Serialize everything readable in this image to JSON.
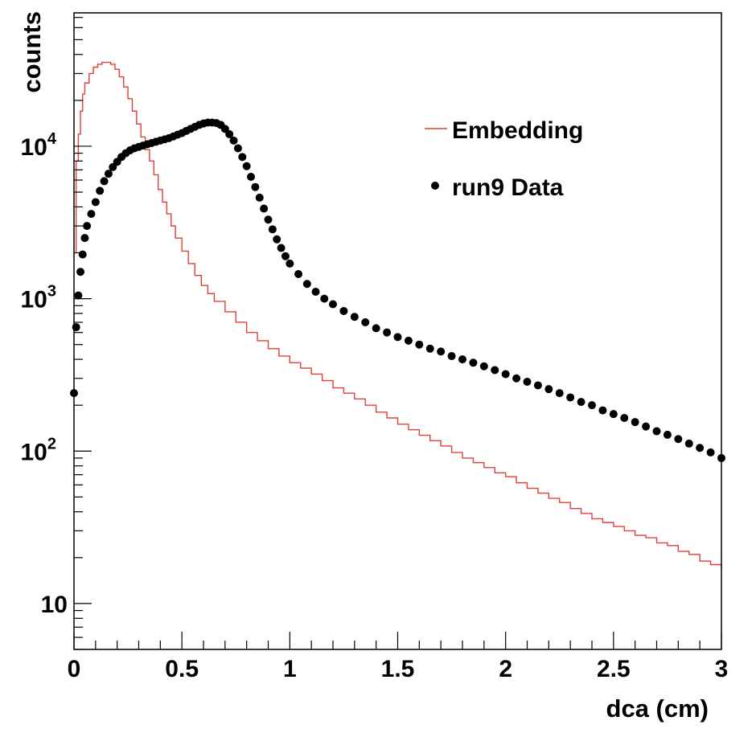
{
  "chart_data": {
    "type": "line",
    "title": "",
    "xlabel": "dca (cm)",
    "ylabel": "counts",
    "xlim": [
      0,
      3
    ],
    "ylim": [
      5,
      75000
    ],
    "y_scale": "log",
    "grid": false,
    "legend_position": "top-right",
    "x_ticks": [
      {
        "value": 0,
        "label": "0"
      },
      {
        "value": 0.5,
        "label": "0.5"
      },
      {
        "value": 1,
        "label": "1"
      },
      {
        "value": 1.5,
        "label": "1.5"
      },
      {
        "value": 2,
        "label": "2"
      },
      {
        "value": 2.5,
        "label": "2.5"
      },
      {
        "value": 3,
        "label": "3"
      }
    ],
    "y_ticks": [
      {
        "value": 10,
        "label": "10"
      },
      {
        "value": 100,
        "label": "10",
        "exponent": "2"
      },
      {
        "value": 1000,
        "label": "10",
        "exponent": "3"
      },
      {
        "value": 10000,
        "label": "10",
        "exponent": "4"
      }
    ],
    "series": [
      {
        "name": "Embedding",
        "style": "step",
        "color": "#e0403a",
        "points": [
          [
            0.0,
            2000
          ],
          [
            0.01,
            8000
          ],
          [
            0.02,
            12000
          ],
          [
            0.03,
            17000
          ],
          [
            0.04,
            22000
          ],
          [
            0.05,
            26000
          ],
          [
            0.07,
            30000
          ],
          [
            0.09,
            33000
          ],
          [
            0.11,
            34500
          ],
          [
            0.13,
            35500
          ],
          [
            0.15,
            35500
          ],
          [
            0.17,
            34500
          ],
          [
            0.19,
            32000
          ],
          [
            0.21,
            28500
          ],
          [
            0.23,
            24500
          ],
          [
            0.25,
            20500
          ],
          [
            0.27,
            17000
          ],
          [
            0.29,
            14000
          ],
          [
            0.31,
            11500
          ],
          [
            0.33,
            9500
          ],
          [
            0.35,
            8000
          ],
          [
            0.37,
            6500
          ],
          [
            0.39,
            5200
          ],
          [
            0.41,
            4300
          ],
          [
            0.43,
            3600
          ],
          [
            0.45,
            3000
          ],
          [
            0.47,
            2500
          ],
          [
            0.5,
            2050
          ],
          [
            0.53,
            1700
          ],
          [
            0.56,
            1420
          ],
          [
            0.59,
            1220
          ],
          [
            0.62,
            1080
          ],
          [
            0.65,
            960
          ],
          [
            0.7,
            820
          ],
          [
            0.75,
            700
          ],
          [
            0.8,
            600
          ],
          [
            0.85,
            530
          ],
          [
            0.9,
            470
          ],
          [
            0.95,
            420
          ],
          [
            1.0,
            380
          ],
          [
            1.05,
            350
          ],
          [
            1.1,
            320
          ],
          [
            1.15,
            290
          ],
          [
            1.2,
            260
          ],
          [
            1.25,
            240
          ],
          [
            1.3,
            220
          ],
          [
            1.35,
            200
          ],
          [
            1.4,
            180
          ],
          [
            1.45,
            165
          ],
          [
            1.5,
            150
          ],
          [
            1.55,
            138
          ],
          [
            1.6,
            127
          ],
          [
            1.65,
            117
          ],
          [
            1.7,
            108
          ],
          [
            1.75,
            98
          ],
          [
            1.8,
            90
          ],
          [
            1.85,
            84
          ],
          [
            1.9,
            78
          ],
          [
            1.95,
            72
          ],
          [
            2.0,
            68
          ],
          [
            2.05,
            62
          ],
          [
            2.1,
            57
          ],
          [
            2.15,
            53
          ],
          [
            2.2,
            49
          ],
          [
            2.25,
            46
          ],
          [
            2.3,
            42
          ],
          [
            2.35,
            39
          ],
          [
            2.4,
            36
          ],
          [
            2.45,
            34
          ],
          [
            2.5,
            32
          ],
          [
            2.55,
            30
          ],
          [
            2.6,
            28
          ],
          [
            2.65,
            27
          ],
          [
            2.7,
            25
          ],
          [
            2.75,
            24
          ],
          [
            2.8,
            22
          ],
          [
            2.85,
            21
          ],
          [
            2.9,
            19
          ],
          [
            2.95,
            18
          ],
          [
            3.0,
            17
          ]
        ]
      },
      {
        "name": "run9 Data",
        "style": "markers",
        "color": "#000000",
        "points": [
          [
            0.0,
            240
          ],
          [
            0.01,
            650
          ],
          [
            0.02,
            1050
          ],
          [
            0.03,
            1500
          ],
          [
            0.04,
            1950
          ],
          [
            0.05,
            2500
          ],
          [
            0.06,
            3000
          ],
          [
            0.08,
            3600
          ],
          [
            0.1,
            4300
          ],
          [
            0.12,
            5100
          ],
          [
            0.14,
            5900
          ],
          [
            0.16,
            6600
          ],
          [
            0.18,
            7300
          ],
          [
            0.2,
            7900
          ],
          [
            0.22,
            8500
          ],
          [
            0.24,
            9000
          ],
          [
            0.26,
            9400
          ],
          [
            0.28,
            9700
          ],
          [
            0.3,
            9900
          ],
          [
            0.32,
            10100
          ],
          [
            0.34,
            10300
          ],
          [
            0.36,
            10500
          ],
          [
            0.38,
            10700
          ],
          [
            0.4,
            10900
          ],
          [
            0.42,
            11100
          ],
          [
            0.44,
            11300
          ],
          [
            0.46,
            11600
          ],
          [
            0.48,
            11900
          ],
          [
            0.5,
            12200
          ],
          [
            0.52,
            12600
          ],
          [
            0.54,
            13000
          ],
          [
            0.56,
            13400
          ],
          [
            0.58,
            13800
          ],
          [
            0.6,
            14100
          ],
          [
            0.62,
            14300
          ],
          [
            0.64,
            14300
          ],
          [
            0.66,
            14200
          ],
          [
            0.68,
            13800
          ],
          [
            0.7,
            13000
          ],
          [
            0.72,
            12000
          ],
          [
            0.74,
            10900
          ],
          [
            0.76,
            9700
          ],
          [
            0.78,
            8500
          ],
          [
            0.8,
            7400
          ],
          [
            0.82,
            6300
          ],
          [
            0.84,
            5400
          ],
          [
            0.86,
            4600
          ],
          [
            0.88,
            3900
          ],
          [
            0.9,
            3300
          ],
          [
            0.92,
            2850
          ],
          [
            0.94,
            2450
          ],
          [
            0.96,
            2150
          ],
          [
            0.98,
            1900
          ],
          [
            1.0,
            1700
          ],
          [
            1.04,
            1450
          ],
          [
            1.08,
            1250
          ],
          [
            1.12,
            1110
          ],
          [
            1.16,
            1000
          ],
          [
            1.2,
            920
          ],
          [
            1.25,
            830
          ],
          [
            1.3,
            760
          ],
          [
            1.35,
            700
          ],
          [
            1.4,
            640
          ],
          [
            1.45,
            600
          ],
          [
            1.5,
            560
          ],
          [
            1.55,
            530
          ],
          [
            1.6,
            500
          ],
          [
            1.65,
            470
          ],
          [
            1.7,
            450
          ],
          [
            1.75,
            420
          ],
          [
            1.8,
            400
          ],
          [
            1.85,
            380
          ],
          [
            1.9,
            360
          ],
          [
            1.95,
            340
          ],
          [
            2.0,
            320
          ],
          [
            2.05,
            300
          ],
          [
            2.1,
            285
          ],
          [
            2.15,
            270
          ],
          [
            2.2,
            255
          ],
          [
            2.25,
            240
          ],
          [
            2.3,
            225
          ],
          [
            2.35,
            210
          ],
          [
            2.4,
            200
          ],
          [
            2.45,
            185
          ],
          [
            2.5,
            175
          ],
          [
            2.55,
            165
          ],
          [
            2.6,
            155
          ],
          [
            2.65,
            145
          ],
          [
            2.7,
            135
          ],
          [
            2.75,
            128
          ],
          [
            2.8,
            120
          ],
          [
            2.85,
            112
          ],
          [
            2.9,
            105
          ],
          [
            2.95,
            98
          ],
          [
            3.0,
            90
          ]
        ]
      }
    ]
  }
}
